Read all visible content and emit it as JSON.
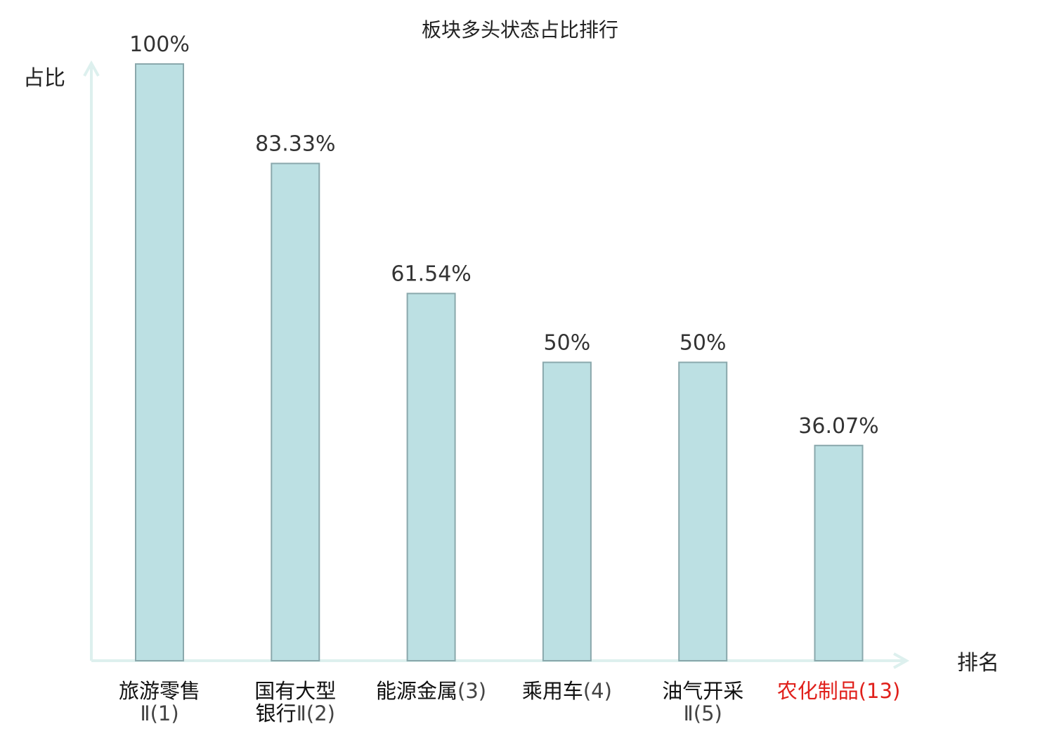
{
  "chart_data": {
    "type": "bar",
    "title": "板块多头状态占比排行",
    "xlabel": "排名",
    "ylabel": "占比",
    "ylim": [
      0,
      100
    ],
    "categories": [
      {
        "lines": [
          {
            "name": "旅游零售",
            "rank": ""
          },
          {
            "name": "",
            "rank": "Ⅱ(1)"
          }
        ],
        "highlight": false
      },
      {
        "lines": [
          {
            "name": "国有大型",
            "rank": ""
          },
          {
            "name": "银行",
            "rank": "Ⅱ(2)"
          }
        ],
        "highlight": false
      },
      {
        "lines": [
          {
            "name": "能源金属",
            "rank": "(3)"
          }
        ],
        "highlight": false
      },
      {
        "lines": [
          {
            "name": "乘用车",
            "rank": "(4)"
          }
        ],
        "highlight": false
      },
      {
        "lines": [
          {
            "name": "油气开采",
            "rank": ""
          },
          {
            "name": "",
            "rank": "Ⅱ(5)"
          }
        ],
        "highlight": false
      },
      {
        "lines": [
          {
            "name": "农化制品",
            "rank": "(13)"
          }
        ],
        "highlight": true
      }
    ],
    "values": [
      100,
      83.33,
      61.54,
      50,
      50,
      36.07
    ],
    "value_labels": [
      "100%",
      "83.33%",
      "61.54%",
      "50%",
      "50%",
      "36.07%"
    ],
    "grid": false,
    "legend": "none",
    "colors": {
      "bar_fill": "#bce0e3",
      "bar_stroke": "#8aa8ac",
      "axis": "#ddf0ee",
      "highlight_text": "#e0201b"
    }
  }
}
